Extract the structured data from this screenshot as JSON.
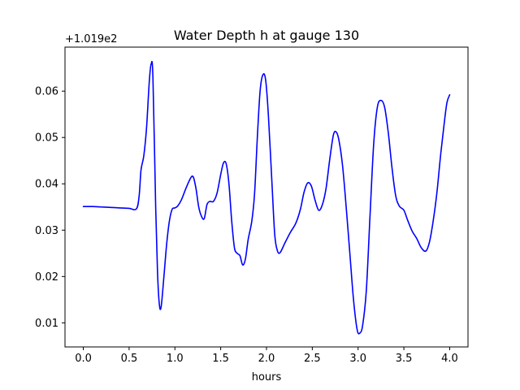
{
  "chart_data": {
    "type": "line",
    "title": "Water Depth h at gauge 130",
    "xlabel": "hours",
    "ylabel": "",
    "y_offset_label": "+1.019e2",
    "xlim": [
      -0.2,
      4.2
    ],
    "ylim": [
      0.0048,
      0.0695
    ],
    "x_ticks": [
      0.0,
      0.5,
      1.0,
      1.5,
      2.0,
      2.5,
      3.0,
      3.5,
      4.0
    ],
    "x_tick_labels": [
      "0.0",
      "0.5",
      "1.0",
      "1.5",
      "2.0",
      "2.5",
      "3.0",
      "3.5",
      "4.0"
    ],
    "y_ticks": [
      0.01,
      0.02,
      0.03,
      0.04,
      0.05,
      0.06
    ],
    "y_tick_labels": [
      "0.01",
      "0.02",
      "0.03",
      "0.04",
      "0.05",
      "0.06"
    ],
    "grid": false,
    "series_color": "#0000ff",
    "series": [
      {
        "points": [
          [
            0.0,
            0.0351
          ],
          [
            0.1,
            0.0351
          ],
          [
            0.2,
            0.035
          ],
          [
            0.3,
            0.0349
          ],
          [
            0.4,
            0.0348
          ],
          [
            0.5,
            0.0347
          ],
          [
            0.58,
            0.0346
          ],
          [
            0.61,
            0.0375
          ],
          [
            0.63,
            0.043
          ],
          [
            0.66,
            0.046
          ],
          [
            0.69,
            0.052
          ],
          [
            0.72,
            0.062
          ],
          [
            0.74,
            0.0658
          ],
          [
            0.76,
            0.063
          ],
          [
            0.79,
            0.035
          ],
          [
            0.81,
            0.021
          ],
          [
            0.83,
            0.014
          ],
          [
            0.85,
            0.0135
          ],
          [
            0.88,
            0.02
          ],
          [
            0.91,
            0.027
          ],
          [
            0.94,
            0.032
          ],
          [
            0.97,
            0.0345
          ],
          [
            1.0,
            0.0348
          ],
          [
            1.03,
            0.0352
          ],
          [
            1.07,
            0.0365
          ],
          [
            1.12,
            0.039
          ],
          [
            1.17,
            0.0412
          ],
          [
            1.2,
            0.0415
          ],
          [
            1.23,
            0.039
          ],
          [
            1.26,
            0.035
          ],
          [
            1.29,
            0.033
          ],
          [
            1.32,
            0.0325
          ],
          [
            1.35,
            0.0355
          ],
          [
            1.38,
            0.0362
          ],
          [
            1.42,
            0.0362
          ],
          [
            1.46,
            0.038
          ],
          [
            1.5,
            0.042
          ],
          [
            1.53,
            0.0445
          ],
          [
            1.56,
            0.0443
          ],
          [
            1.59,
            0.04
          ],
          [
            1.62,
            0.032
          ],
          [
            1.65,
            0.0262
          ],
          [
            1.68,
            0.025
          ],
          [
            1.71,
            0.0245
          ],
          [
            1.74,
            0.0225
          ],
          [
            1.77,
            0.0238
          ],
          [
            1.8,
            0.028
          ],
          [
            1.84,
            0.032
          ],
          [
            1.87,
            0.038
          ],
          [
            1.9,
            0.05
          ],
          [
            1.93,
            0.06
          ],
          [
            1.96,
            0.0635
          ],
          [
            1.99,
            0.0625
          ],
          [
            2.02,
            0.055
          ],
          [
            2.06,
            0.04
          ],
          [
            2.09,
            0.029
          ],
          [
            2.12,
            0.0255
          ],
          [
            2.15,
            0.0252
          ],
          [
            2.2,
            0.0272
          ],
          [
            2.26,
            0.0295
          ],
          [
            2.32,
            0.0315
          ],
          [
            2.37,
            0.0345
          ],
          [
            2.41,
            0.0382
          ],
          [
            2.45,
            0.0402
          ],
          [
            2.49,
            0.0395
          ],
          [
            2.53,
            0.0365
          ],
          [
            2.57,
            0.0343
          ],
          [
            2.61,
            0.0355
          ],
          [
            2.65,
            0.039
          ],
          [
            2.69,
            0.0452
          ],
          [
            2.73,
            0.0505
          ],
          [
            2.76,
            0.0512
          ],
          [
            2.79,
            0.0495
          ],
          [
            2.83,
            0.044
          ],
          [
            2.87,
            0.035
          ],
          [
            2.91,
            0.025
          ],
          [
            2.95,
            0.015
          ],
          [
            2.99,
            0.0085
          ],
          [
            3.02,
            0.0078
          ],
          [
            3.05,
            0.0095
          ],
          [
            3.09,
            0.017
          ],
          [
            3.13,
            0.033
          ],
          [
            3.17,
            0.0485
          ],
          [
            3.21,
            0.0565
          ],
          [
            3.25,
            0.058
          ],
          [
            3.29,
            0.0565
          ],
          [
            3.33,
            0.051
          ],
          [
            3.37,
            0.0435
          ],
          [
            3.41,
            0.0375
          ],
          [
            3.45,
            0.0352
          ],
          [
            3.5,
            0.0343
          ],
          [
            3.54,
            0.0322
          ],
          [
            3.59,
            0.0298
          ],
          [
            3.64,
            0.0282
          ],
          [
            3.69,
            0.0262
          ],
          [
            3.74,
            0.0255
          ],
          [
            3.78,
            0.0275
          ],
          [
            3.82,
            0.032
          ],
          [
            3.86,
            0.038
          ],
          [
            3.9,
            0.046
          ],
          [
            3.94,
            0.053
          ],
          [
            3.97,
            0.0575
          ],
          [
            4.0,
            0.0592
          ]
        ]
      }
    ]
  }
}
